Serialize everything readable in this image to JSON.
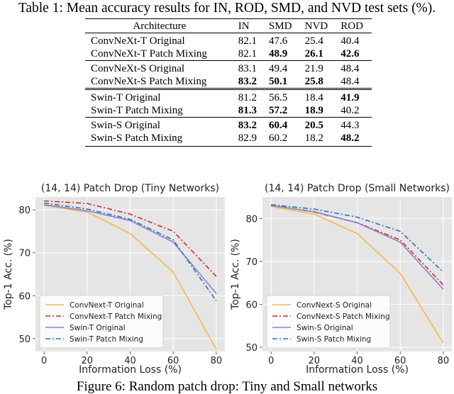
{
  "table": {
    "caption": "Table 1: Mean accuracy results for IN, ROD, SMD, and NVD test sets (%).",
    "headers": [
      "Architecture",
      "IN",
      "SMD",
      "NVD",
      "ROD"
    ],
    "rows": [
      {
        "name": "ConvNeXt-T Original",
        "values": [
          "82.1",
          "47.6",
          "25.4",
          "40.4"
        ],
        "bold": [
          false,
          false,
          false,
          false
        ]
      },
      {
        "name": "ConvNeXt-T Patch Mixing",
        "values": [
          "82.1",
          "48.9",
          "26.1",
          "42.6"
        ],
        "bold": [
          false,
          true,
          true,
          true
        ]
      },
      {
        "name": "ConvNeXt-S Original",
        "values": [
          "83.1",
          "49.4",
          "21.9",
          "48.4"
        ],
        "bold": [
          false,
          false,
          false,
          false
        ]
      },
      {
        "name": "ConvNeXt-S Patch Mixing",
        "values": [
          "83.2",
          "50.1",
          "25.8",
          "48.4"
        ],
        "bold": [
          true,
          true,
          true,
          false
        ]
      },
      {
        "name": "Swin-T Original",
        "values": [
          "81.2",
          "56.5",
          "18.4",
          "41.9"
        ],
        "bold": [
          false,
          false,
          false,
          true
        ]
      },
      {
        "name": "Swin-T Patch Mixing",
        "values": [
          "81.3",
          "57.2",
          "18.9",
          "40.2"
        ],
        "bold": [
          true,
          true,
          true,
          false
        ]
      },
      {
        "name": "Swin-S Original",
        "values": [
          "83.2",
          "60.4",
          "20.5",
          "44.3"
        ],
        "bold": [
          true,
          true,
          true,
          false
        ]
      },
      {
        "name": "Swin-S Patch Mixing",
        "values": [
          "82.9",
          "60.2",
          "18.2",
          "48.2"
        ],
        "bold": [
          false,
          false,
          false,
          true
        ]
      }
    ]
  },
  "chart_data": [
    {
      "type": "line",
      "title": "(14, 14) Patch Drop (Tiny Networks)",
      "xlabel": "Information Loss (%)",
      "ylabel": "Top-1 Acc. (%)",
      "x": [
        0,
        20,
        40,
        60,
        80
      ],
      "xticks": [
        "0",
        "20",
        "40",
        "60",
        "80"
      ],
      "yticks": [
        "50",
        "60",
        "70",
        "80"
      ],
      "ytick_values": [
        50,
        60,
        70,
        80
      ],
      "xlim": [
        -4,
        84
      ],
      "ylim": [
        47,
        83
      ],
      "grid": true,
      "legend_position": "bottom-left",
      "series": [
        {
          "name": "ConvNext-T Original",
          "values": [
            81.0,
            79.5,
            74.5,
            65.5,
            47.5
          ],
          "color": "#f5b942",
          "dash": "solid"
        },
        {
          "name": "ConvNext-T Patch Mixing",
          "values": [
            82.1,
            81.5,
            79.0,
            75.0,
            64.5
          ],
          "color": "#d62728",
          "dash": "dashdot"
        },
        {
          "name": "Swin-T Original",
          "values": [
            81.2,
            79.8,
            77.5,
            72.5,
            60.5
          ],
          "color": "#8b7fd6",
          "dash": "solid"
        },
        {
          "name": "Swin-T Patch Mixing",
          "values": [
            81.6,
            80.2,
            77.8,
            73.0,
            58.8
          ],
          "color": "#1f77b4",
          "dash": "dashdot"
        }
      ]
    },
    {
      "type": "line",
      "title": "(14, 14) Patch Drop (Small Networks)",
      "xlabel": "Information Loss (%)",
      "ylabel": "Top-1 Acc. (%)",
      "x": [
        0,
        20,
        40,
        60,
        80
      ],
      "xticks": [
        "0",
        "20",
        "40",
        "60",
        "80"
      ],
      "yticks": [
        "50",
        "60",
        "70",
        "80"
      ],
      "ytick_values": [
        50,
        60,
        70,
        80
      ],
      "xlim": [
        -4,
        84
      ],
      "ylim": [
        49,
        85
      ],
      "grid": true,
      "legend_position": "bottom-left",
      "series": [
        {
          "name": "ConvNext-S Original",
          "values": [
            82.8,
            81.0,
            76.5,
            67.2,
            51.0
          ],
          "color": "#f5b942",
          "dash": "solid"
        },
        {
          "name": "ConvNext-S Patch Mixing",
          "values": [
            83.1,
            81.5,
            79.0,
            75.0,
            64.5
          ],
          "color": "#d62728",
          "dash": "dashdot"
        },
        {
          "name": "Swin-S Original",
          "values": [
            83.0,
            81.6,
            79.0,
            74.5,
            63.5
          ],
          "color": "#8b7fd6",
          "dash": "solid"
        },
        {
          "name": "Swin-S Patch Mixing",
          "values": [
            83.2,
            82.2,
            80.3,
            77.0,
            67.5
          ],
          "color": "#1f77b4",
          "dash": "dashdot"
        }
      ]
    }
  ],
  "figure": {
    "caption": "Figure 6: Random patch drop: Tiny and Small networks"
  }
}
